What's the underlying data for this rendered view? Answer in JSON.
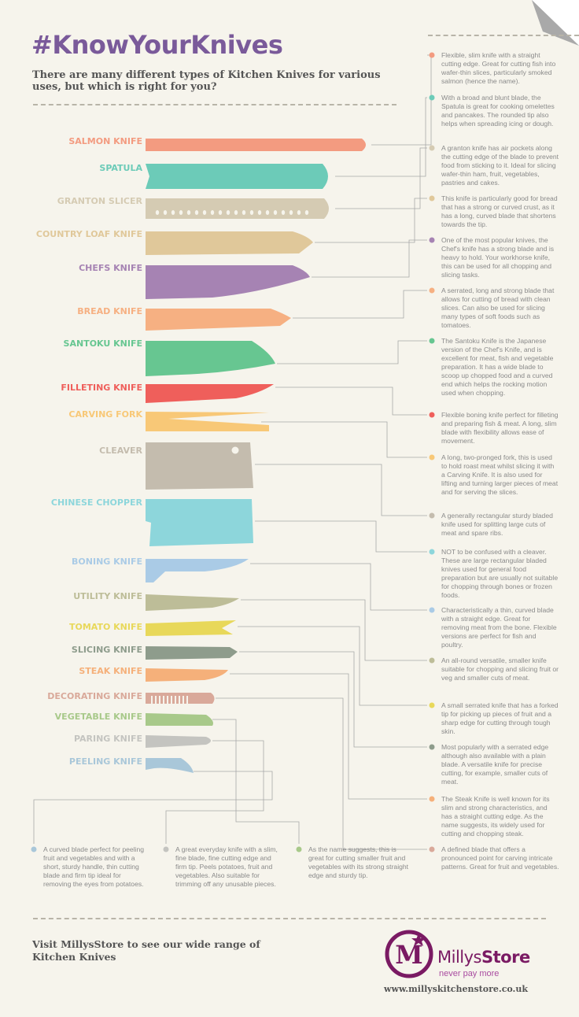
{
  "header": {
    "title": "#KnowYourKnives",
    "subtitle": "There are many different types of Kitchen Knives for various uses, but which is right for you?"
  },
  "knives": [
    {
      "label": "SALMON KNIFE",
      "color": "#f39b80"
    },
    {
      "label": "SPATULA",
      "color": "#6ccbb8"
    },
    {
      "label": "GRANTON SLICER",
      "color": "#d5cbb3"
    },
    {
      "label": "COUNTRY LOAF KNIFE",
      "color": "#e0c89a"
    },
    {
      "label": "CHEFS KNIFE",
      "color": "#a683b3"
    },
    {
      "label": "BREAD KNIFE",
      "color": "#f6b082"
    },
    {
      "label": "SANTOKU KNIFE",
      "color": "#67c691"
    },
    {
      "label": "FILLETING KNIFE",
      "color": "#ef5f5b"
    },
    {
      "label": "CARVING FORK",
      "color": "#f8c877"
    },
    {
      "label": "CLEAVER",
      "color": "#c4bcae"
    },
    {
      "label": "CHINESE CHOPPER",
      "color": "#8dd6db"
    },
    {
      "label": "BONING KNIFE",
      "color": "#aacbe6"
    },
    {
      "label": "UTILITY KNIFE",
      "color": "#bdbd98"
    },
    {
      "label": "TOMATO KNIFE",
      "color": "#e8d85a"
    },
    {
      "label": "SLICING KNIFE",
      "color": "#8e9c8c"
    },
    {
      "label": "STEAK KNIFE",
      "color": "#f5b07a"
    },
    {
      "label": "DECORATING KNIFE",
      "color": "#d9a99a"
    },
    {
      "label": "VEGETABLE KNIFE",
      "color": "#a8c98a"
    },
    {
      "label": "PARING KNIFE",
      "color": "#c4c4c0"
    },
    {
      "label": "PEELING KNIFE",
      "color": "#a9c7d9"
    }
  ],
  "descriptions": [
    {
      "knife": "SALMON KNIFE",
      "text": "Flexible, slim knife with a straight cutting edge. Great for cutting fish into wafer-thin slices, particularly smoked salmon (hence the name)."
    },
    {
      "knife": "SPATULA",
      "text": "With a broad and blunt blade, the Spatula is great for cooking omelettes and pancakes. The rounded tip also helps when spreading icing or dough."
    },
    {
      "knife": "GRANTON SLICER",
      "text": "A granton knife has air pockets along the cutting edge of the blade to prevent food from sticking to it. Ideal for slicing wafer-thin ham, fruit, vegetables, pastries and cakes."
    },
    {
      "knife": "COUNTRY LOAF KNIFE",
      "text": "This knife is particularly good for bread that has a strong or curved crust, as it has a long, curved blade that shortens towards the tip."
    },
    {
      "knife": "CHEFS KNIFE",
      "text": "One of the most popular knives, the Chef's knife has a strong blade and is heavy to hold. Your workhorse knife, this can be used for all chopping and slicing tasks."
    },
    {
      "knife": "BREAD KNIFE",
      "text": "A serrated, long and strong blade that allows for cutting of bread with clean slices. Can also be used for slicing many types of soft foods such as tomatoes."
    },
    {
      "knife": "SANTOKU KNIFE",
      "text": "The Santoku Knife is the Japanese version of the Chef's Knife, and is excellent for meat, fish and vegetable preparation. It has a wide blade to scoop up chopped food and a curved end which helps the rocking motion used when chopping."
    },
    {
      "knife": "FILLETING KNIFE",
      "text": "Flexible boning knife perfect for filleting and preparing fish & meat. A long, slim blade with flexibility allows ease of movement."
    },
    {
      "knife": "CARVING FORK",
      "text": "A long, two-pronged fork, this is used to hold roast meat whilst slicing it with a Carving Knife. It is also used for lifting and turning larger pieces of meat and for serving the slices."
    },
    {
      "knife": "CLEAVER",
      "text": "A generally rectangular sturdy bladed knife used for splitting large cuts of meat and spare ribs."
    },
    {
      "knife": "CHINESE CHOPPER",
      "text": "NOT to be confused with a cleaver. These are large rectangular bladed knives used for general food preparation but are usually not suitable for chopping through bones or frozen foods."
    },
    {
      "knife": "BONING KNIFE",
      "text": "Characteristically a thin, curved blade with a straight edge. Great for removing meat from the bone. Flexible versions are perfect for fish and poultry."
    },
    {
      "knife": "UTILITY KNIFE",
      "text": "An all-round versatile, smaller knife suitable for chopping and slicing fruit or veg and smaller cuts of meat."
    },
    {
      "knife": "TOMATO KNIFE",
      "text": "A small serrated knife that has a forked tip for picking up pieces of fruit and a sharp edge for cutting through tough skin."
    },
    {
      "knife": "SLICING KNIFE",
      "text": "Most popularly with a serrated edge although also available with a plain blade. A versatile knife for precise cutting, for example, smaller cuts of meat."
    },
    {
      "knife": "STEAK KNIFE",
      "text": "The Steak Knife is well known for its slim and strong characteristics, and has a straight cutting edge. As the name suggests, its widely used for cutting and chopping steak."
    },
    {
      "knife": "DECORATING KNIFE",
      "text": "A defined blade that offers a pronounced point for carving intricate patterns. Great for fruit and vegetables."
    },
    {
      "knife": "PEELING KNIFE",
      "text": "A curved blade perfect for peeling fruit and vegetables and with a short, sturdy handle, thin cutting blade and firm tip ideal for removing the eyes from potatoes."
    },
    {
      "knife": "PARING KNIFE",
      "text": "A great everyday knife with a slim, fine blade, fine cutting edge and firm tip. Peels potatoes, fruit and vegetables. Also suitable for trimming off any unusable pieces."
    },
    {
      "knife": "VEGETABLE KNIFE",
      "text": "As the name suggests, this is great for cutting smaller fruit and vegetables with its strong straight edge and sturdy tip."
    }
  ],
  "footer": {
    "visit_text": "Visit MillysStore to see our wide range of Kitchen Knives",
    "brand_a": "Millys",
    "brand_b": "Store",
    "tagline": "never pay more",
    "url": "www.millyskitchenstore.co.uk",
    "logo_letter": "M"
  },
  "colors": {
    "title": "#7a5a9a",
    "brand": "#7a1a63",
    "connector": "#9a9a9a"
  }
}
